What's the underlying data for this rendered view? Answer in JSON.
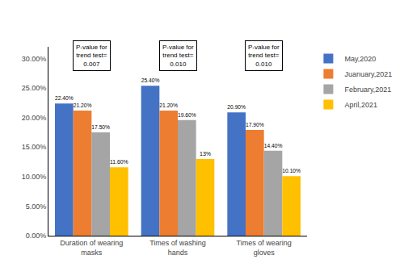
{
  "chart_data": {
    "type": "bar",
    "categories": [
      "Duration of wearing\nmasks",
      "Times of washing\nhands",
      "Times of wearing\ngloves"
    ],
    "series": [
      {
        "name": "May,2020",
        "color": "#4472C4",
        "values": [
          22.4,
          25.4,
          20.9
        ],
        "value_labels": [
          "22.40%",
          "25.40%",
          "20.90%"
        ]
      },
      {
        "name": "Juanuary,2021",
        "color": "#ED7D31",
        "values": [
          21.2,
          21.2,
          17.9
        ],
        "value_labels": [
          "21.20%",
          "21.20%",
          "17.90%"
        ]
      },
      {
        "name": "February,2021",
        "color": "#A5A5A5",
        "values": [
          17.5,
          19.6,
          14.4
        ],
        "value_labels": [
          "17.50%",
          "19.60%",
          "14.40%"
        ]
      },
      {
        "name": "April,2021",
        "color": "#FFC000",
        "values": [
          11.6,
          13.0,
          10.1
        ],
        "value_labels": [
          "11.60%",
          "13%",
          "10.10%"
        ]
      }
    ],
    "ylim": [
      0,
      32
    ],
    "yticks": [
      {
        "value": 0.0,
        "label": "0.00%"
      },
      {
        "value": 5.0,
        "label": "5.00%"
      },
      {
        "value": 10.0,
        "label": "10.00%"
      },
      {
        "value": 15.0,
        "label": "15.00%"
      },
      {
        "value": 20.0,
        "label": "20.00%"
      },
      {
        "value": 25.0,
        "label": "25.00%"
      },
      {
        "value": 30.0,
        "label": "30.00%"
      }
    ],
    "grid": false,
    "data_labels": true,
    "legend": "right",
    "annotations": [
      "P-value for\ntrend test=\n0.007",
      "P-value for\ntrend test=\n0.010",
      "P-value for\ntrend test=\n0.010"
    ]
  }
}
